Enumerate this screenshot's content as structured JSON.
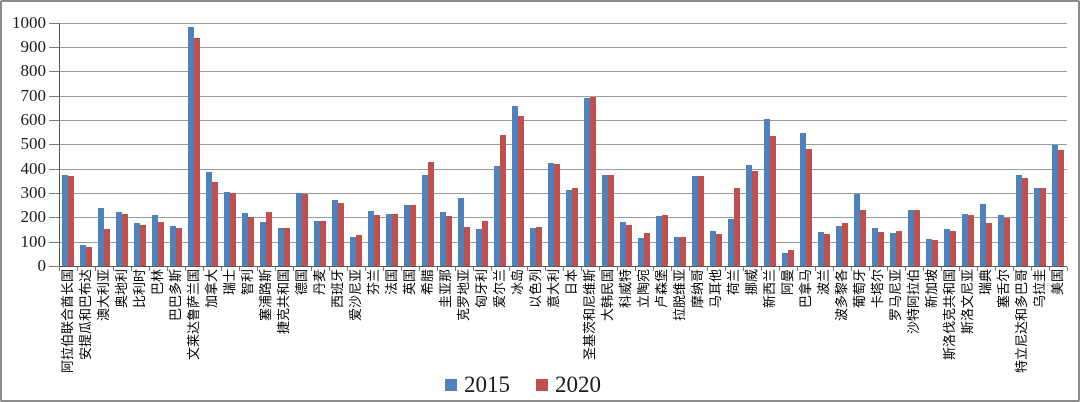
{
  "chart_data": {
    "type": "bar",
    "title": "",
    "xlabel": "",
    "ylabel": "",
    "ylim": [
      0,
      1000
    ],
    "ytick_interval": 100,
    "ytick_labels": [
      "0",
      "100",
      "200",
      "300",
      "400",
      "500",
      "600",
      "700",
      "800",
      "900",
      "1000"
    ],
    "grid": "horizontal",
    "legend_position": "bottom-center",
    "x_label_rotation": -90,
    "categories": [
      "阿拉伯联合酋长国",
      "安提瓜和巴布达",
      "澳大利亚",
      "奥地利",
      "比利时",
      "巴林",
      "巴巴多斯",
      "文莱达鲁萨兰国",
      "加拿大",
      "瑞士",
      "智利",
      "塞浦路斯",
      "捷克共和国",
      "德国",
      "丹麦",
      "西班牙",
      "爱沙尼亚",
      "芬兰",
      "法国",
      "英国",
      "希腊",
      "圭亚那",
      "克罗地亚",
      "匈牙利",
      "爱尔兰",
      "冰岛",
      "以色列",
      "意大利",
      "日本",
      "圣基茨和尼维斯",
      "大韩民国",
      "科威特",
      "立陶宛",
      "卢森堡",
      "拉脱维亚",
      "摩纳哥",
      "马耳他",
      "荷兰",
      "挪威",
      "新西兰",
      "阿曼",
      "巴拿马",
      "波兰",
      "波多黎各",
      "葡萄牙",
      "卡塔尔",
      "罗马尼亚",
      "沙特阿拉伯",
      "新加坡",
      "斯洛伐克共和国",
      "斯洛文尼亚",
      "瑞典",
      "塞舌尔",
      "特立尼达和多巴哥",
      "乌拉圭",
      "美国"
    ],
    "series": [
      {
        "name": "2015",
        "color": "#4F81BD",
        "values": [
          375,
          85,
          240,
          220,
          175,
          210,
          165,
          980,
          385,
          305,
          218,
          180,
          158,
          300,
          186,
          271,
          120,
          225,
          212,
          250,
          374,
          220,
          280,
          152,
          410,
          658,
          155,
          422,
          314,
          688,
          375,
          180,
          115,
          205,
          120,
          370,
          145,
          195,
          415,
          605,
          55,
          545,
          140,
          163,
          295,
          155,
          135,
          230,
          110,
          150,
          215,
          255,
          210,
          375,
          320,
          495
        ]
      },
      {
        "name": "2020",
        "color": "#C0504D",
        "values": [
          370,
          80,
          150,
          215,
          168,
          180,
          158,
          935,
          345,
          298,
          200,
          222,
          155,
          294,
          184,
          259,
          128,
          210,
          212,
          252,
          426,
          205,
          162,
          183,
          536,
          618,
          160,
          418,
          320,
          693,
          375,
          170,
          135,
          211,
          120,
          370,
          130,
          320,
          390,
          535,
          65,
          480,
          130,
          176,
          230,
          140,
          145,
          230,
          105,
          143,
          210,
          177,
          196,
          360,
          320,
          478
        ]
      }
    ]
  }
}
